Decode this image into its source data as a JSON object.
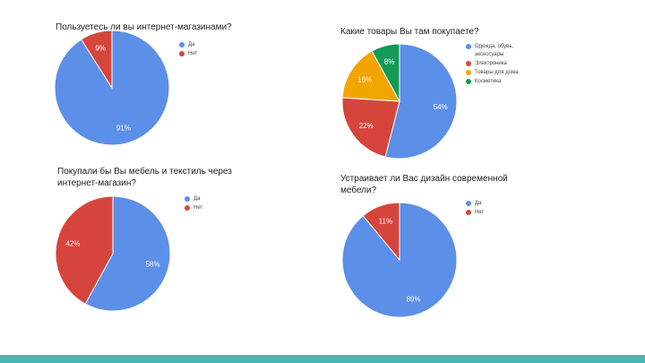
{
  "colors": {
    "blue": "#5c8fe8",
    "red": "#d6453c",
    "yellow": "#f2a500",
    "green": "#139a55"
  },
  "chart_data": [
    {
      "type": "pie",
      "title": "Пользуетесь ли вы интернет-магазинами?",
      "legend": [
        "Да",
        "Нет"
      ],
      "slices": [
        {
          "name": "Да",
          "value": 91,
          "label": "91%",
          "color": "#5c8fe8"
        },
        {
          "name": "Нет",
          "value": 9,
          "label": "9%",
          "color": "#d6453c"
        }
      ],
      "legend_position": "right"
    },
    {
      "type": "pie",
      "title": "Какие товары Вы там покупаете?",
      "legend": [
        "Одежда, обувь, аксессуары",
        "Электроника",
        "Товары для дома",
        "Косметика"
      ],
      "slices": [
        {
          "name": "Одежда, обувь, аксессуары",
          "value": 54,
          "label": "54%",
          "color": "#5c8fe8"
        },
        {
          "name": "Электроника",
          "value": 22,
          "label": "22%",
          "color": "#d6453c"
        },
        {
          "name": "Товары для дома",
          "value": 16,
          "label": "16%",
          "color": "#f2a500"
        },
        {
          "name": "Косметика",
          "value": 8,
          "label": "8%",
          "color": "#139a55"
        }
      ],
      "legend_position": "right"
    },
    {
      "type": "pie",
      "title": "Покупали бы Вы мебель и текстиль через интернет-магазин?",
      "legend": [
        "Да",
        "Нет"
      ],
      "slices": [
        {
          "name": "Да",
          "value": 58,
          "label": "58%",
          "color": "#5c8fe8"
        },
        {
          "name": "Нет",
          "value": 42,
          "label": "42%",
          "color": "#d6453c"
        }
      ],
      "legend_position": "right"
    },
    {
      "type": "pie",
      "title": "Устраивает ли Вас дизайн современной мебели?",
      "legend": [
        "Да",
        "Нет"
      ],
      "slices": [
        {
          "name": "Да",
          "value": 89,
          "label": "89%",
          "color": "#5c8fe8"
        },
        {
          "name": "Нет",
          "value": 11,
          "label": "11%",
          "color": "#d6453c"
        }
      ],
      "legend_position": "right"
    }
  ]
}
